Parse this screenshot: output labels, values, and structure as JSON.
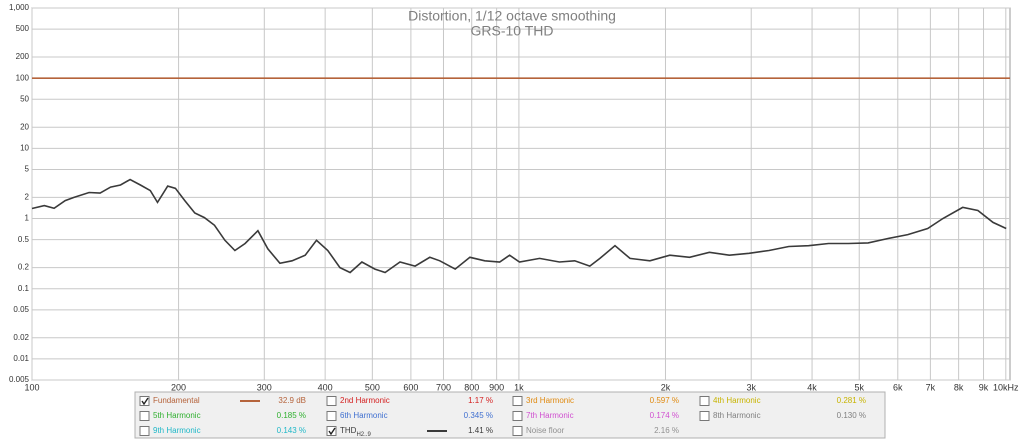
{
  "chart_data": {
    "type": "line",
    "title": "Distortion, 1/12 octave smoothing",
    "subtitle": "GRS-10 THD",
    "xscale": "log",
    "yscale": "log",
    "grid": true,
    "xlim": [
      100,
      10200
    ],
    "ylim": [
      0.005,
      1000
    ],
    "xticks": [
      100,
      200,
      300,
      400,
      500,
      600,
      700,
      800,
      900,
      {
        "value": 1000,
        "label": "1k"
      },
      {
        "value": 2000,
        "label": "2k"
      },
      {
        "value": 3000,
        "label": "3k"
      },
      {
        "value": 4000,
        "label": "4k"
      },
      {
        "value": 5000,
        "label": "5k"
      },
      {
        "value": 6000,
        "label": "6k"
      },
      {
        "value": 7000,
        "label": "7k"
      },
      {
        "value": 8000,
        "label": "8k"
      },
      {
        "value": 9000,
        "label": "9k"
      },
      {
        "value": 10000,
        "label": "10kHz"
      }
    ],
    "yticks": [
      {
        "value": 1000,
        "label": "1,000"
      },
      500,
      200,
      100,
      50,
      20,
      10,
      5,
      2,
      1,
      0.5,
      0.2,
      0.1,
      0.05,
      0.02,
      0.01,
      0.005
    ],
    "series": [
      {
        "name": "Fundamental",
        "color": "#b5633b",
        "reading": "32.9 dB",
        "checked": true,
        "x": [
          100,
          10200
        ],
        "values": [
          100,
          100
        ]
      },
      {
        "name": "2nd Harmonic",
        "color": "#d42020",
        "reading": "1.17 %",
        "checked": false
      },
      {
        "name": "3rd Harmonic",
        "color": "#e08a10",
        "reading": "0.597 %",
        "checked": false
      },
      {
        "name": "4th Harmonic",
        "color": "#c8b400",
        "reading": "0.281 %",
        "checked": false
      },
      {
        "name": "5th Harmonic",
        "color": "#30b030",
        "reading": "0.185 %",
        "checked": false
      },
      {
        "name": "6th Harmonic",
        "color": "#4070d0",
        "reading": "0.345 %",
        "checked": false
      },
      {
        "name": "7th Harmonic",
        "color": "#d050d0",
        "reading": "0.174 %",
        "checked": false
      },
      {
        "name": "8th Harmonic",
        "color": "#808080",
        "reading": "0.130 %",
        "checked": false
      },
      {
        "name": "9th Harmonic",
        "color": "#20b8c8",
        "reading": "0.143 %",
        "checked": false
      },
      {
        "name": "THD",
        "name_sub": "H2..9",
        "color": "#3a3a3a",
        "reading": "1.41 %",
        "checked": true,
        "x": [
          100,
          106,
          111,
          117,
          122,
          131,
          138,
          145,
          152,
          159,
          167,
          175,
          181,
          190,
          197,
          206,
          216,
          226,
          237,
          249,
          261,
          274,
          291,
          305,
          323,
          342,
          364,
          384,
          405,
          429,
          450,
          476,
          506,
          531,
          570,
          612,
          656,
          688,
          740,
          793,
          851,
          913,
          957,
          1003,
          1103,
          1211,
          1302,
          1398,
          1467,
          1575,
          1691,
          1858,
          2041,
          2242,
          2462,
          2704,
          2970,
          3263,
          3583,
          3936,
          4323,
          4748,
          5215,
          5728,
          6291,
          6910,
          7425,
          8156,
          8762,
          9413,
          10018
        ],
        "values": [
          1.39,
          1.53,
          1.4,
          1.8,
          2.0,
          2.35,
          2.3,
          2.8,
          3.0,
          3.6,
          3.0,
          2.5,
          1.7,
          2.9,
          2.7,
          1.8,
          1.2,
          1.03,
          0.8,
          0.49,
          0.35,
          0.44,
          0.67,
          0.37,
          0.23,
          0.25,
          0.3,
          0.49,
          0.35,
          0.2,
          0.17,
          0.24,
          0.19,
          0.17,
          0.24,
          0.21,
          0.28,
          0.25,
          0.19,
          0.28,
          0.25,
          0.24,
          0.3,
          0.24,
          0.27,
          0.24,
          0.25,
          0.21,
          0.27,
          0.41,
          0.27,
          0.25,
          0.3,
          0.28,
          0.33,
          0.3,
          0.32,
          0.35,
          0.4,
          0.41,
          0.44,
          0.44,
          0.45,
          0.52,
          0.59,
          0.72,
          1.0,
          1.44,
          1.3,
          0.88,
          0.72
        ]
      },
      {
        "name": "Noise floor",
        "color": "#909090",
        "reading": "2.16 %",
        "checked": false
      }
    ]
  }
}
